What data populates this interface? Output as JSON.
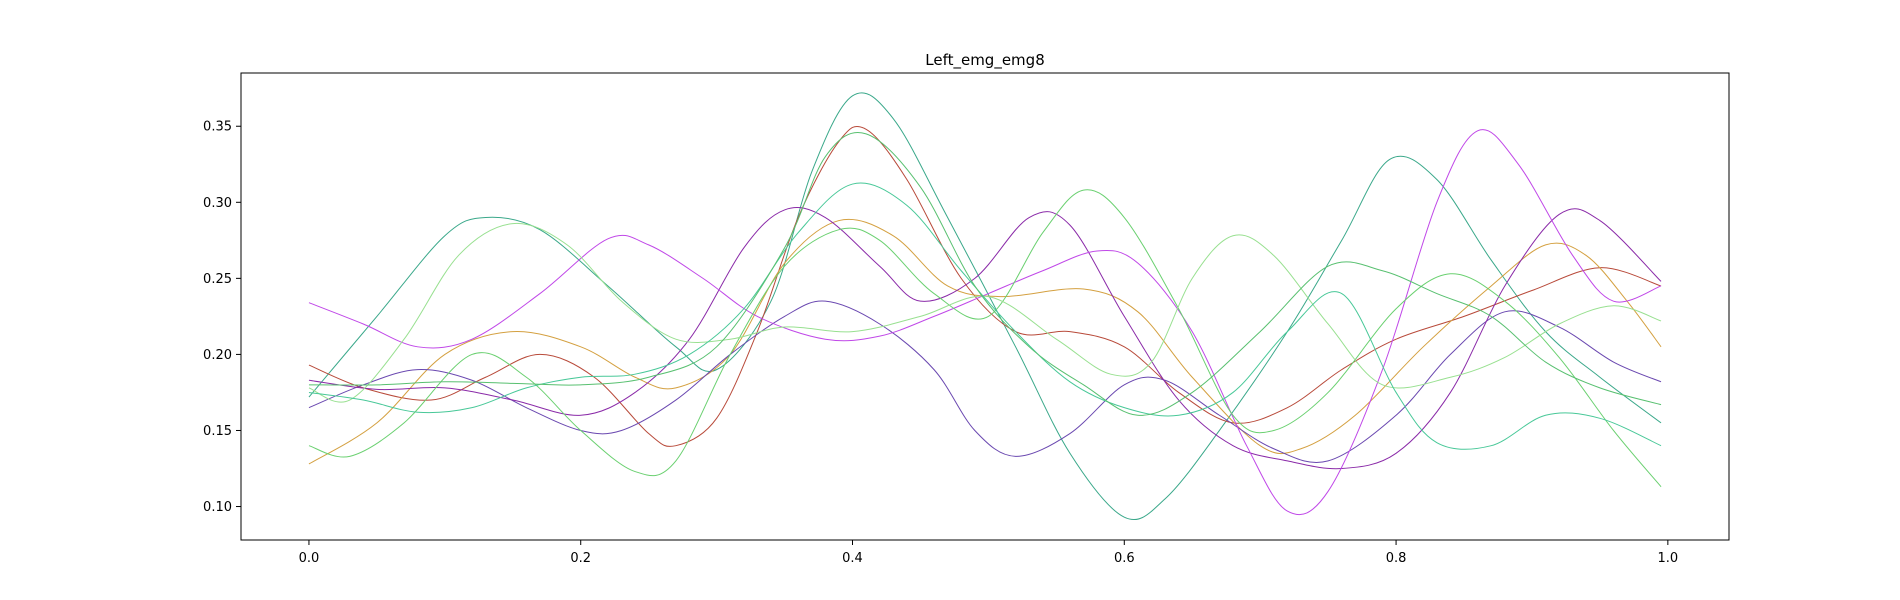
{
  "chart_data": {
    "type": "line",
    "title": "Left_emg_emg8",
    "xlabel": "",
    "ylabel": "",
    "xlim": [
      -0.05,
      1.045
    ],
    "ylim": [
      0.078,
      0.385
    ],
    "grid": false,
    "legend": "none",
    "xticks": [
      0.0,
      0.2,
      0.4,
      0.6,
      0.8,
      1.0
    ],
    "xtick_labels": [
      "0.0",
      "0.2",
      "0.4",
      "0.6",
      "0.8",
      "1.0"
    ],
    "yticks": [
      0.1,
      0.15,
      0.2,
      0.25,
      0.3,
      0.35
    ],
    "ytick_labels": [
      "0.10",
      "0.15",
      "0.20",
      "0.25",
      "0.30",
      "0.35"
    ],
    "series": [
      {
        "color": "#3aa88a",
        "points": [
          [
            0.0,
            0.172
          ],
          [
            0.05,
            0.225
          ],
          [
            0.1,
            0.278
          ],
          [
            0.13,
            0.29
          ],
          [
            0.17,
            0.282
          ],
          [
            0.22,
            0.245
          ],
          [
            0.27,
            0.205
          ],
          [
            0.3,
            0.19
          ],
          [
            0.34,
            0.235
          ],
          [
            0.37,
            0.32
          ],
          [
            0.4,
            0.37
          ],
          [
            0.43,
            0.355
          ],
          [
            0.47,
            0.29
          ],
          [
            0.52,
            0.205
          ],
          [
            0.56,
            0.135
          ],
          [
            0.6,
            0.093
          ],
          [
            0.63,
            0.105
          ],
          [
            0.67,
            0.15
          ],
          [
            0.72,
            0.215
          ],
          [
            0.76,
            0.275
          ],
          [
            0.795,
            0.328
          ],
          [
            0.83,
            0.315
          ],
          [
            0.87,
            0.262
          ],
          [
            0.91,
            0.215
          ],
          [
            0.95,
            0.185
          ],
          [
            0.995,
            0.155
          ]
        ]
      },
      {
        "color": "#b84a3a",
        "points": [
          [
            0.0,
            0.193
          ],
          [
            0.04,
            0.178
          ],
          [
            0.09,
            0.17
          ],
          [
            0.13,
            0.185
          ],
          [
            0.17,
            0.2
          ],
          [
            0.21,
            0.185
          ],
          [
            0.25,
            0.148
          ],
          [
            0.27,
            0.14
          ],
          [
            0.3,
            0.158
          ],
          [
            0.33,
            0.215
          ],
          [
            0.36,
            0.29
          ],
          [
            0.39,
            0.34
          ],
          [
            0.41,
            0.348
          ],
          [
            0.44,
            0.315
          ],
          [
            0.48,
            0.25
          ],
          [
            0.52,
            0.215
          ],
          [
            0.56,
            0.215
          ],
          [
            0.6,
            0.205
          ],
          [
            0.64,
            0.175
          ],
          [
            0.68,
            0.155
          ],
          [
            0.72,
            0.165
          ],
          [
            0.76,
            0.19
          ],
          [
            0.8,
            0.21
          ],
          [
            0.85,
            0.225
          ],
          [
            0.9,
            0.242
          ],
          [
            0.95,
            0.257
          ],
          [
            0.995,
            0.245
          ]
        ]
      },
      {
        "color": "#d4a040",
        "points": [
          [
            0.0,
            0.128
          ],
          [
            0.05,
            0.155
          ],
          [
            0.1,
            0.2
          ],
          [
            0.15,
            0.215
          ],
          [
            0.2,
            0.205
          ],
          [
            0.24,
            0.185
          ],
          [
            0.27,
            0.178
          ],
          [
            0.31,
            0.2
          ],
          [
            0.35,
            0.26
          ],
          [
            0.39,
            0.288
          ],
          [
            0.43,
            0.278
          ],
          [
            0.47,
            0.245
          ],
          [
            0.51,
            0.238
          ],
          [
            0.57,
            0.243
          ],
          [
            0.61,
            0.228
          ],
          [
            0.65,
            0.185
          ],
          [
            0.7,
            0.14
          ],
          [
            0.73,
            0.138
          ],
          [
            0.77,
            0.16
          ],
          [
            0.82,
            0.205
          ],
          [
            0.87,
            0.245
          ],
          [
            0.91,
            0.272
          ],
          [
            0.94,
            0.265
          ],
          [
            0.97,
            0.235
          ],
          [
            0.995,
            0.205
          ]
        ]
      },
      {
        "color": "#6a48b0",
        "points": [
          [
            0.0,
            0.165
          ],
          [
            0.04,
            0.18
          ],
          [
            0.08,
            0.19
          ],
          [
            0.12,
            0.183
          ],
          [
            0.16,
            0.165
          ],
          [
            0.2,
            0.15
          ],
          [
            0.23,
            0.15
          ],
          [
            0.27,
            0.17
          ],
          [
            0.31,
            0.2
          ],
          [
            0.35,
            0.225
          ],
          [
            0.38,
            0.235
          ],
          [
            0.42,
            0.22
          ],
          [
            0.46,
            0.19
          ],
          [
            0.49,
            0.15
          ],
          [
            0.52,
            0.133
          ],
          [
            0.56,
            0.148
          ],
          [
            0.6,
            0.18
          ],
          [
            0.63,
            0.183
          ],
          [
            0.67,
            0.16
          ],
          [
            0.71,
            0.138
          ],
          [
            0.75,
            0.13
          ],
          [
            0.8,
            0.16
          ],
          [
            0.84,
            0.2
          ],
          [
            0.88,
            0.228
          ],
          [
            0.92,
            0.218
          ],
          [
            0.96,
            0.195
          ],
          [
            0.995,
            0.182
          ]
        ]
      },
      {
        "color": "#8a2aa8",
        "points": [
          [
            0.0,
            0.183
          ],
          [
            0.05,
            0.177
          ],
          [
            0.1,
            0.178
          ],
          [
            0.15,
            0.17
          ],
          [
            0.2,
            0.16
          ],
          [
            0.24,
            0.175
          ],
          [
            0.28,
            0.21
          ],
          [
            0.32,
            0.27
          ],
          [
            0.35,
            0.295
          ],
          [
            0.38,
            0.29
          ],
          [
            0.42,
            0.258
          ],
          [
            0.45,
            0.235
          ],
          [
            0.49,
            0.25
          ],
          [
            0.53,
            0.29
          ],
          [
            0.56,
            0.285
          ],
          [
            0.6,
            0.225
          ],
          [
            0.64,
            0.17
          ],
          [
            0.68,
            0.14
          ],
          [
            0.72,
            0.13
          ],
          [
            0.76,
            0.125
          ],
          [
            0.8,
            0.135
          ],
          [
            0.84,
            0.175
          ],
          [
            0.88,
            0.245
          ],
          [
            0.92,
            0.292
          ],
          [
            0.95,
            0.288
          ],
          [
            0.995,
            0.248
          ]
        ]
      },
      {
        "color": "#c048e8",
        "points": [
          [
            0.0,
            0.234
          ],
          [
            0.04,
            0.22
          ],
          [
            0.08,
            0.205
          ],
          [
            0.12,
            0.21
          ],
          [
            0.17,
            0.24
          ],
          [
            0.22,
            0.276
          ],
          [
            0.25,
            0.272
          ],
          [
            0.29,
            0.25
          ],
          [
            0.33,
            0.225
          ],
          [
            0.38,
            0.21
          ],
          [
            0.42,
            0.212
          ],
          [
            0.46,
            0.225
          ],
          [
            0.5,
            0.24
          ],
          [
            0.54,
            0.255
          ],
          [
            0.58,
            0.268
          ],
          [
            0.61,
            0.26
          ],
          [
            0.65,
            0.215
          ],
          [
            0.69,
            0.14
          ],
          [
            0.72,
            0.097
          ],
          [
            0.75,
            0.11
          ],
          [
            0.79,
            0.19
          ],
          [
            0.83,
            0.3
          ],
          [
            0.86,
            0.347
          ],
          [
            0.89,
            0.325
          ],
          [
            0.93,
            0.265
          ],
          [
            0.96,
            0.235
          ],
          [
            0.995,
            0.245
          ]
        ]
      },
      {
        "color": "#6ad070",
        "points": [
          [
            0.0,
            0.14
          ],
          [
            0.03,
            0.133
          ],
          [
            0.07,
            0.155
          ],
          [
            0.12,
            0.2
          ],
          [
            0.16,
            0.185
          ],
          [
            0.2,
            0.15
          ],
          [
            0.24,
            0.123
          ],
          [
            0.27,
            0.13
          ],
          [
            0.31,
            0.2
          ],
          [
            0.35,
            0.258
          ],
          [
            0.39,
            0.282
          ],
          [
            0.42,
            0.275
          ],
          [
            0.46,
            0.24
          ],
          [
            0.5,
            0.225
          ],
          [
            0.54,
            0.28
          ],
          [
            0.57,
            0.308
          ],
          [
            0.6,
            0.29
          ],
          [
            0.64,
            0.23
          ],
          [
            0.68,
            0.16
          ],
          [
            0.71,
            0.15
          ],
          [
            0.75,
            0.175
          ],
          [
            0.8,
            0.23
          ],
          [
            0.84,
            0.253
          ],
          [
            0.88,
            0.235
          ],
          [
            0.92,
            0.198
          ],
          [
            0.96,
            0.15
          ],
          [
            0.995,
            0.113
          ]
        ]
      },
      {
        "color": "#98e090",
        "points": [
          [
            0.0,
            0.178
          ],
          [
            0.03,
            0.17
          ],
          [
            0.07,
            0.21
          ],
          [
            0.11,
            0.265
          ],
          [
            0.15,
            0.286
          ],
          [
            0.19,
            0.272
          ],
          [
            0.23,
            0.235
          ],
          [
            0.27,
            0.21
          ],
          [
            0.31,
            0.21
          ],
          [
            0.35,
            0.218
          ],
          [
            0.4,
            0.215
          ],
          [
            0.45,
            0.225
          ],
          [
            0.5,
            0.238
          ],
          [
            0.55,
            0.21
          ],
          [
            0.59,
            0.187
          ],
          [
            0.62,
            0.195
          ],
          [
            0.65,
            0.25
          ],
          [
            0.68,
            0.278
          ],
          [
            0.71,
            0.265
          ],
          [
            0.75,
            0.22
          ],
          [
            0.79,
            0.18
          ],
          [
            0.84,
            0.185
          ],
          [
            0.88,
            0.198
          ],
          [
            0.92,
            0.22
          ],
          [
            0.96,
            0.232
          ],
          [
            0.995,
            0.222
          ]
        ]
      },
      {
        "color": "#48c898",
        "points": [
          [
            0.0,
            0.175
          ],
          [
            0.04,
            0.17
          ],
          [
            0.08,
            0.162
          ],
          [
            0.12,
            0.165
          ],
          [
            0.16,
            0.178
          ],
          [
            0.2,
            0.185
          ],
          [
            0.24,
            0.187
          ],
          [
            0.28,
            0.2
          ],
          [
            0.32,
            0.23
          ],
          [
            0.36,
            0.28
          ],
          [
            0.4,
            0.312
          ],
          [
            0.44,
            0.298
          ],
          [
            0.48,
            0.255
          ],
          [
            0.52,
            0.215
          ],
          [
            0.56,
            0.182
          ],
          [
            0.6,
            0.165
          ],
          [
            0.64,
            0.16
          ],
          [
            0.68,
            0.175
          ],
          [
            0.72,
            0.215
          ],
          [
            0.76,
            0.24
          ],
          [
            0.8,
            0.175
          ],
          [
            0.83,
            0.142
          ],
          [
            0.87,
            0.14
          ],
          [
            0.91,
            0.16
          ],
          [
            0.95,
            0.158
          ],
          [
            0.995,
            0.14
          ]
        ]
      },
      {
        "color": "#58c070",
        "points": [
          [
            0.0,
            0.18
          ],
          [
            0.05,
            0.18
          ],
          [
            0.1,
            0.182
          ],
          [
            0.15,
            0.181
          ],
          [
            0.2,
            0.18
          ],
          [
            0.25,
            0.185
          ],
          [
            0.3,
            0.205
          ],
          [
            0.35,
            0.27
          ],
          [
            0.38,
            0.33
          ],
          [
            0.41,
            0.345
          ],
          [
            0.45,
            0.31
          ],
          [
            0.49,
            0.245
          ],
          [
            0.53,
            0.205
          ],
          [
            0.57,
            0.18
          ],
          [
            0.61,
            0.16
          ],
          [
            0.65,
            0.175
          ],
          [
            0.7,
            0.215
          ],
          [
            0.75,
            0.258
          ],
          [
            0.79,
            0.255
          ],
          [
            0.83,
            0.24
          ],
          [
            0.87,
            0.225
          ],
          [
            0.91,
            0.195
          ],
          [
            0.95,
            0.178
          ],
          [
            0.995,
            0.167
          ]
        ]
      }
    ]
  }
}
